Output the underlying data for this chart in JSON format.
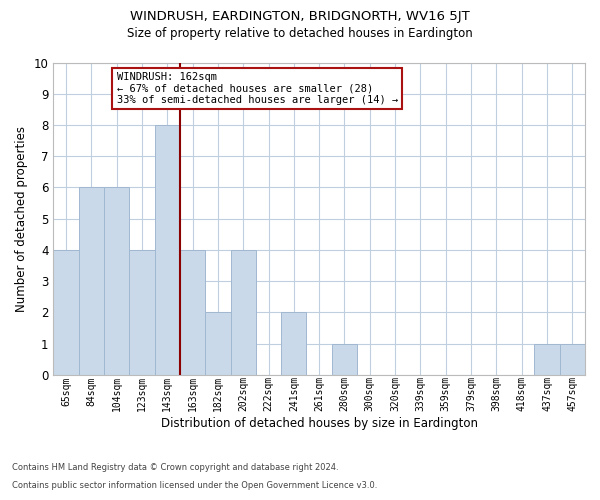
{
  "title": "WINDRUSH, EARDINGTON, BRIDGNORTH, WV16 5JT",
  "subtitle": "Size of property relative to detached houses in Eardington",
  "xlabel": "Distribution of detached houses by size in Eardington",
  "ylabel": "Number of detached properties",
  "bar_labels": [
    "65sqm",
    "84sqm",
    "104sqm",
    "123sqm",
    "143sqm",
    "163sqm",
    "182sqm",
    "202sqm",
    "222sqm",
    "241sqm",
    "261sqm",
    "280sqm",
    "300sqm",
    "320sqm",
    "339sqm",
    "359sqm",
    "379sqm",
    "398sqm",
    "418sqm",
    "437sqm",
    "457sqm"
  ],
  "bar_values": [
    4,
    6,
    6,
    4,
    8,
    4,
    2,
    4,
    0,
    2,
    0,
    1,
    0,
    0,
    0,
    0,
    0,
    0,
    0,
    1,
    1
  ],
  "bar_color": "#c9d9e9",
  "bar_edge_color": "#a0b8d0",
  "highlight_line_color": "#8b0000",
  "highlight_after_index": 4,
  "ylim": [
    0,
    10
  ],
  "yticks": [
    0,
    1,
    2,
    3,
    4,
    5,
    6,
    7,
    8,
    9,
    10
  ],
  "annotation_title": "WINDRUSH: 162sqm",
  "annotation_line1": "← 67% of detached houses are smaller (28)",
  "annotation_line2": "33% of semi-detached houses are larger (14) →",
  "annotation_box_color": "#ffffff",
  "annotation_box_edge": "#aa1111",
  "grid_color": "#c0cfe0",
  "background_color": "#ffffff",
  "footer_line1": "Contains HM Land Registry data © Crown copyright and database right 2024.",
  "footer_line2": "Contains public sector information licensed under the Open Government Licence v3.0."
}
